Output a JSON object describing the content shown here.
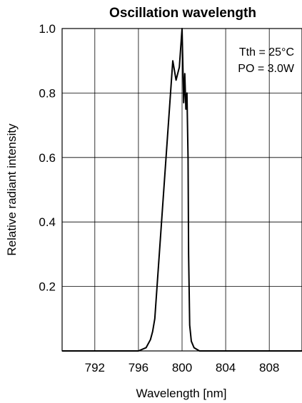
{
  "chart_data": {
    "type": "line",
    "title": "Oscillation wavelength",
    "xlabel": "Wavelength [nm]",
    "ylabel": "Relative radiant intensity",
    "xlim": [
      789,
      811
    ],
    "ylim": [
      0,
      1.0
    ],
    "x_ticks": [
      "792",
      "796",
      "800",
      "804",
      "808"
    ],
    "x_tick_values": [
      792,
      796,
      800,
      804,
      808
    ],
    "y_ticks": [
      "1.0",
      "0.8",
      "0.6",
      "0.4",
      "0.2"
    ],
    "y_tick_values": [
      1.0,
      0.8,
      0.6,
      0.4,
      0.2
    ],
    "grid": true,
    "annotations": [
      "Tth = 25°C",
      "PO = 3.0W"
    ],
    "series": [
      {
        "color": "#000000",
        "x": [
          789.0,
          796.0,
          796.7,
          797.1,
          797.3,
          797.5,
          799.15,
          799.45,
          799.75,
          800.0,
          800.15,
          800.25,
          800.35,
          800.45,
          800.55,
          800.6,
          800.7,
          800.85,
          801.1,
          801.6,
          811.0
        ],
        "y": [
          0.0,
          0.0,
          0.01,
          0.035,
          0.06,
          0.1,
          0.9,
          0.84,
          0.88,
          1.0,
          0.77,
          0.86,
          0.75,
          0.8,
          0.6,
          0.3,
          0.08,
          0.03,
          0.01,
          0.0,
          0.0
        ]
      }
    ]
  }
}
